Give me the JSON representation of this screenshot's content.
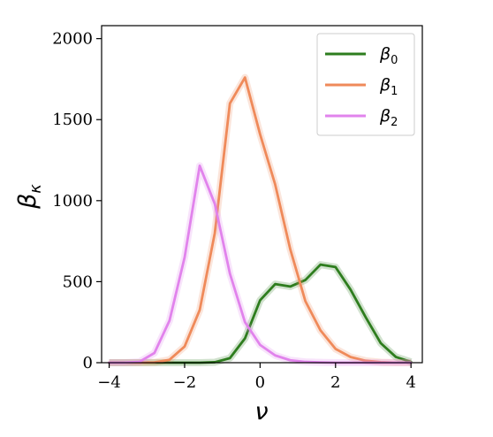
{
  "chart_data": {
    "type": "line",
    "title": "",
    "xlabel": "ν",
    "ylabel": "β",
    "ylabel_subscript": "κ",
    "xlim": [
      -4.2,
      4.3
    ],
    "ylim": [
      0,
      2080
    ],
    "xticks": [
      -4,
      -2,
      0,
      2,
      4
    ],
    "xtick_labels": [
      "−4",
      "−2",
      "0",
      "2",
      "4"
    ],
    "yticks": [
      0,
      500,
      1000,
      1500,
      2000
    ],
    "ytick_labels": [
      "0",
      "500",
      "1000",
      "1500",
      "2000"
    ],
    "grid": false,
    "legend_position": "top-right",
    "series": [
      {
        "name": "β",
        "subscript": "0",
        "color": "#2e7d1e",
        "x": [
          -4,
          -3.6,
          -3.2,
          -2.8,
          -2.4,
          -2.0,
          -1.6,
          -1.2,
          -0.8,
          -0.4,
          0.0,
          0.4,
          0.8,
          1.2,
          1.6,
          2.0,
          2.4,
          2.8,
          3.2,
          3.6,
          4.0
        ],
        "values": [
          0,
          0,
          0,
          0,
          0,
          0,
          0,
          3,
          28,
          150,
          385,
          485,
          470,
          510,
          605,
          590,
          450,
          280,
          120,
          35,
          5
        ]
      },
      {
        "name": "β",
        "subscript": "1",
        "color": "#ef8a5a",
        "x": [
          -4,
          -3.6,
          -3.2,
          -2.8,
          -2.4,
          -2.0,
          -1.6,
          -1.2,
          -0.8,
          -0.4,
          0.0,
          0.4,
          0.8,
          1.2,
          1.6,
          2.0,
          2.4,
          2.8,
          3.2,
          3.6,
          4.0
        ],
        "values": [
          0,
          0,
          0,
          2,
          18,
          100,
          325,
          800,
          1600,
          1760,
          1410,
          1100,
          700,
          380,
          200,
          85,
          35,
          12,
          3,
          0,
          0
        ]
      },
      {
        "name": "β",
        "subscript": "2",
        "color": "#e183ec",
        "x": [
          -4,
          -3.6,
          -3.2,
          -2.8,
          -2.4,
          -2.0,
          -1.6,
          -1.2,
          -0.8,
          -0.4,
          0.0,
          0.4,
          0.8,
          1.2,
          1.6,
          2.0,
          2.4,
          2.8,
          3.2,
          3.6,
          4.0
        ],
        "values": [
          0,
          0,
          5,
          60,
          260,
          650,
          1215,
          980,
          550,
          250,
          110,
          45,
          15,
          5,
          2,
          0,
          0,
          0,
          0,
          0,
          0
        ]
      }
    ]
  }
}
